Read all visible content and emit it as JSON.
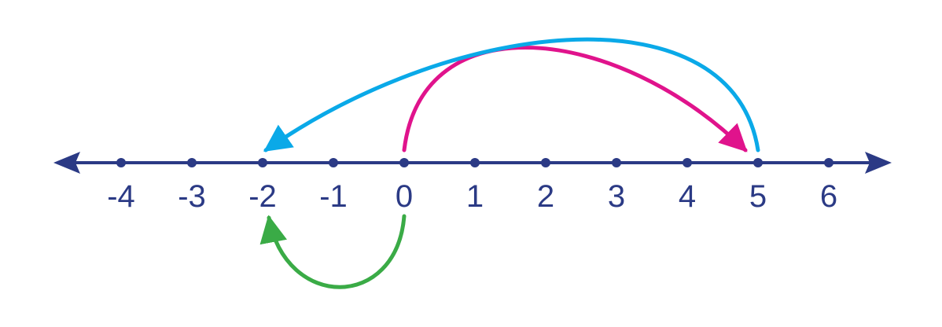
{
  "number_line": {
    "ticks": [
      {
        "value": -4,
        "label": "-4"
      },
      {
        "value": -3,
        "label": "-3"
      },
      {
        "value": -2,
        "label": "-2"
      },
      {
        "value": -1,
        "label": "-1"
      },
      {
        "value": 0,
        "label": "0"
      },
      {
        "value": 1,
        "label": "1"
      },
      {
        "value": 2,
        "label": "2"
      },
      {
        "value": 3,
        "label": "3"
      },
      {
        "value": 4,
        "label": "4"
      },
      {
        "value": 5,
        "label": "5"
      },
      {
        "value": 6,
        "label": "6"
      }
    ],
    "line_color": "#2b3a85",
    "arrows": [
      {
        "name": "pink-jump",
        "from": 0,
        "to": 5,
        "side": "above",
        "color": "#e0138c"
      },
      {
        "name": "blue-jump",
        "from": 5,
        "to": -2,
        "side": "above",
        "color": "#0aa9e8"
      },
      {
        "name": "green-jump",
        "from": 0,
        "to": -2,
        "side": "below",
        "color": "#3aab46"
      }
    ]
  }
}
